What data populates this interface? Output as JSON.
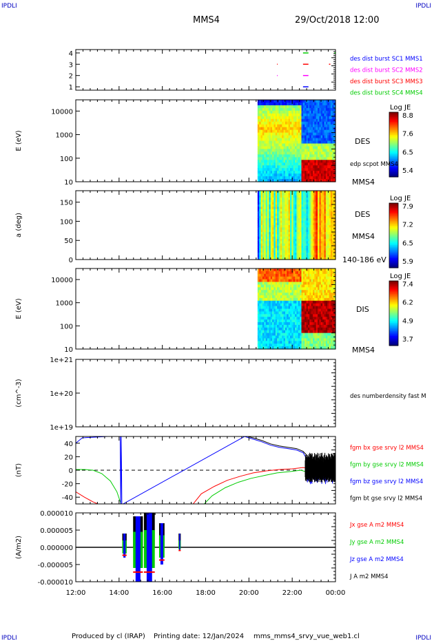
{
  "header": {
    "corner_tl": "IPDLI",
    "corner_tr": "IPDLI",
    "corner_bl": "IPDLI",
    "corner_br": "IPDLI",
    "spacecraft": "MMS4",
    "datetime": "29/Oct/2018 12:00"
  },
  "footer": {
    "produced": "Produced by cl (IRAP)",
    "printing": "Printing date: 12/Jan/2024",
    "file": "mms_mms4_srvy_vue_web1.cl"
  },
  "colors": {
    "mms1": "#0000ff",
    "mms2": "#ff00ff",
    "mms3": "#ff0000",
    "mms4": "#00cc00",
    "bx": "#ff0000",
    "by": "#00cc00",
    "bz": "#0000ff",
    "bt": "#000000"
  },
  "chart_data": [
    {
      "type": "scatter",
      "id": "burst",
      "ylim": [
        0.7,
        4.3
      ],
      "yticks": [
        "1",
        "2",
        "3",
        "4"
      ],
      "legend": [
        "des dist burst SC1 MMS1",
        "des dist burst SC2 MMS2",
        "des dist burst SC3 MMS3",
        "des dist burst SC4 MMS4"
      ],
      "segments": [
        {
          "sc": 4,
          "t0": 22.5,
          "t1": 22.75
        },
        {
          "sc": 3,
          "t0": 22.5,
          "t1": 22.75
        },
        {
          "sc": 2,
          "t0": 22.5,
          "t1": 22.75
        },
        {
          "sc": 1,
          "t0": 22.5,
          "t1": 22.75
        },
        {
          "sc": 3,
          "t0": 21.3,
          "t1": 21.33
        },
        {
          "sc": 2,
          "t0": 21.3,
          "t1": 21.33
        },
        {
          "sc": 3,
          "t0": 23.7,
          "t1": 23.76
        },
        {
          "sc": 4,
          "t0": 23.95,
          "t1": 24.0
        }
      ]
    },
    {
      "type": "heatmap",
      "id": "des_energy",
      "ylabel": "E (eV)",
      "yscale": "log",
      "ylim": [
        10,
        30000
      ],
      "yticks": [
        "10",
        "100",
        "1000",
        "10000"
      ],
      "label": "DES",
      "sublabel": "edp scpot MMS4",
      "sc_label": "MMS4",
      "colorbar": {
        "title": "Log JE",
        "ticks": [
          "8.8",
          "7.6",
          "6.5",
          "5.4"
        ],
        "min": 5.4,
        "max": 8.8
      },
      "data_start": 20.4
    },
    {
      "type": "heatmap",
      "id": "des_pitch",
      "ylabel": "a (deg)",
      "ylim": [
        0,
        180
      ],
      "yticks": [
        "0",
        "50",
        "100",
        "150"
      ],
      "label": "DES",
      "sublabel": "MMS4",
      "sc_label": "140-186 eV",
      "colorbar": {
        "title": "Log JE",
        "ticks": [
          "7.9",
          "7.2",
          "6.5",
          "5.9"
        ],
        "min": 5.9,
        "max": 7.9
      },
      "data_start": 20.4
    },
    {
      "type": "heatmap",
      "id": "dis_energy",
      "ylabel": "E (eV)",
      "yscale": "log",
      "ylim": [
        10,
        30000
      ],
      "yticks": [
        "10",
        "100",
        "1000",
        "10000"
      ],
      "label": "DIS",
      "sc_label": "MMS4",
      "colorbar": {
        "title": "Log JE",
        "ticks": [
          "7.4",
          "6.2",
          "4.9",
          "3.7"
        ],
        "min": 3.7,
        "max": 7.4
      },
      "data_start": 20.4
    },
    {
      "type": "line",
      "id": "density",
      "ylabel": "(cm^-3)",
      "yscale": "log",
      "ylim": [
        1e+19,
        1e+21
      ],
      "yticks": [
        "1e+19",
        "1e+20",
        "1e+21"
      ],
      "legend": [
        "des numberdensity fast M"
      ]
    },
    {
      "type": "line",
      "id": "bfield",
      "ylabel": "(nT)",
      "ylim": [
        -50,
        50
      ],
      "yticks": [
        "-40",
        "-20",
        "0",
        "20",
        "40"
      ],
      "legend": [
        "fgm bx gse srvy l2 MMS4",
        "fgm by gse srvy l2 MMS4",
        "fgm bz gse srvy l2 MMS4",
        "fgm bt gse srvy l2 MMS4"
      ],
      "series": [
        {
          "name": "fgm bx gse srvy l2 MMS4",
          "x": [
            12.0,
            12.4,
            12.8,
            13.1,
            17.4,
            17.8,
            18.4,
            19.0,
            19.6,
            20.2,
            20.8,
            21.4,
            22.0,
            22.5,
            22.8,
            23.2,
            24.0
          ],
          "y": [
            -32,
            -40,
            -47,
            -51,
            -51,
            -35,
            -24,
            -15,
            -9,
            -4,
            -1,
            1,
            2,
            4,
            3,
            2,
            1
          ]
        },
        {
          "name": "fgm by gse srvy l2 MMS4",
          "x": [
            12.0,
            12.4,
            12.8,
            13.2,
            13.6,
            13.9,
            14.1,
            17.9,
            18.3,
            18.9,
            19.5,
            20.1,
            20.7,
            21.3,
            21.9,
            22.4,
            22.7,
            23.2,
            24.0
          ],
          "y": [
            1,
            1,
            0,
            -5,
            -16,
            -32,
            -51,
            -51,
            -38,
            -26,
            -18,
            -12,
            -8,
            -4,
            -2,
            0,
            -3,
            -2,
            -2
          ]
        },
        {
          "name": "fgm bz gse srvy l2 MMS4",
          "x": [
            12.0,
            12.3,
            14.05,
            14.08,
            14.1,
            14.13,
            19.8,
            20.2,
            20.6,
            21.0,
            21.4,
            21.8,
            22.2,
            22.5,
            22.8,
            23.2,
            24.0
          ],
          "y": [
            40,
            48,
            51,
            -51,
            51,
            -51,
            50,
            46,
            42,
            37,
            34,
            32,
            30,
            26,
            10,
            5,
            0
          ]
        },
        {
          "name": "fgm bt gse srvy l2 MMS4",
          "x": [
            19.8,
            20.2,
            20.6,
            21.0,
            21.4,
            21.8,
            22.2,
            22.5,
            22.8,
            23.2,
            24.0
          ],
          "y": [
            51,
            48,
            44,
            39,
            36,
            34,
            32,
            28,
            18,
            12,
            8
          ]
        }
      ]
    },
    {
      "type": "line",
      "id": "current",
      "ylabel": "(A/m2)",
      "ylim": [
        -1e-05,
        1e-05
      ],
      "yticks": [
        "-0.000010",
        "-0.000005",
        "0.000000",
        "0.000005",
        "0.000010"
      ],
      "legend": [
        "Jx gse A m2 MMS4",
        "Jy gse A m2 MMS4",
        "Jz gse A m2 MMS4",
        "J A m2 MMS4"
      ],
      "spikes": [
        {
          "t0": 14.15,
          "t1": 14.35,
          "up": 4e-06,
          "down": -3e-06
        },
        {
          "t0": 14.65,
          "t1": 15.1,
          "up": 9e-06,
          "down": -1e-05
        },
        {
          "t0": 15.15,
          "t1": 15.65,
          "up": 1e-05,
          "down": -1e-05
        },
        {
          "t0": 15.85,
          "t1": 16.1,
          "up": 7e-06,
          "down": -5e-06
        },
        {
          "t0": 16.75,
          "t1": 16.85,
          "up": 4e-06,
          "down": -1e-06
        }
      ]
    }
  ],
  "xaxis": {
    "ticks": [
      "12:00",
      "14:00",
      "16:00",
      "18:00",
      "20:00",
      "22:00",
      "00:00"
    ],
    "range": [
      12,
      24
    ]
  }
}
